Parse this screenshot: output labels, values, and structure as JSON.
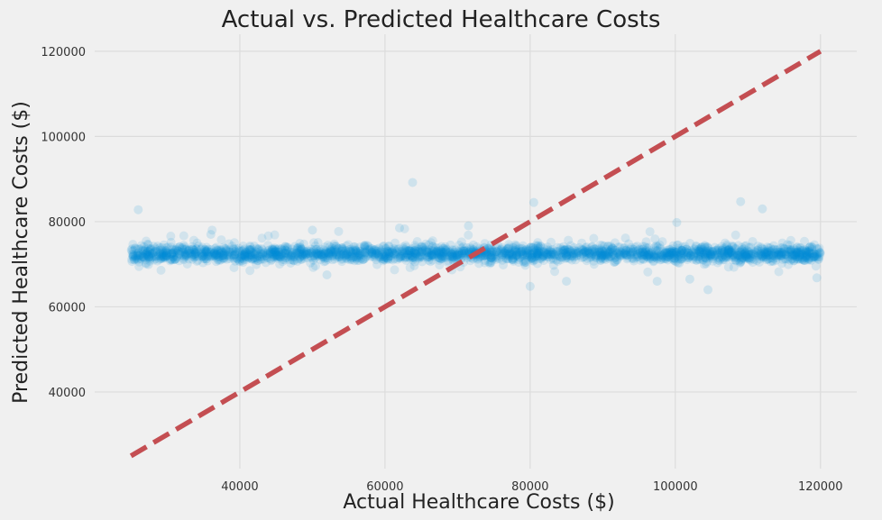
{
  "chart_data": {
    "type": "scatter",
    "title": "Actual vs. Predicted Healthcare Costs",
    "xlabel": "Actual Healthcare Costs ($)",
    "ylabel": "Predicted Healthcare Costs ($)",
    "xlim": [
      20000,
      125000
    ],
    "ylim": [
      22000,
      124000
    ],
    "xticks": [
      40000,
      60000,
      80000,
      100000,
      120000
    ],
    "yticks": [
      40000,
      60000,
      80000,
      100000,
      120000
    ],
    "xtick_labels": [
      "40000",
      "60000",
      "80000",
      "100000",
      "120000"
    ],
    "ytick_labels": [
      "40000",
      "60000",
      "80000",
      "100000",
      "120000"
    ],
    "grid": true,
    "point_color": "#008fd5",
    "point_opacity": 0.12,
    "reference_line": {
      "style": "dashed",
      "color": "#c44e52",
      "from": [
        25000,
        25000
      ],
      "to": [
        120000,
        120000
      ]
    },
    "cluster": {
      "x_range": [
        25000,
        120000
      ],
      "y_center": 72500,
      "y_spread": 1800
    },
    "outliers": [
      {
        "x": 26000,
        "y": 82800
      },
      {
        "x": 36000,
        "y": 77000
      },
      {
        "x": 50000,
        "y": 78000
      },
      {
        "x": 52000,
        "y": 67500
      },
      {
        "x": 62000,
        "y": 78500
      },
      {
        "x": 63800,
        "y": 89200
      },
      {
        "x": 71500,
        "y": 79000
      },
      {
        "x": 80000,
        "y": 64800
      },
      {
        "x": 80500,
        "y": 84500
      },
      {
        "x": 85000,
        "y": 66000
      },
      {
        "x": 97500,
        "y": 66000
      },
      {
        "x": 100200,
        "y": 79800
      },
      {
        "x": 102000,
        "y": 66500
      },
      {
        "x": 104500,
        "y": 64000
      },
      {
        "x": 109000,
        "y": 84700
      },
      {
        "x": 112000,
        "y": 83000
      },
      {
        "x": 119500,
        "y": 66800
      }
    ]
  }
}
